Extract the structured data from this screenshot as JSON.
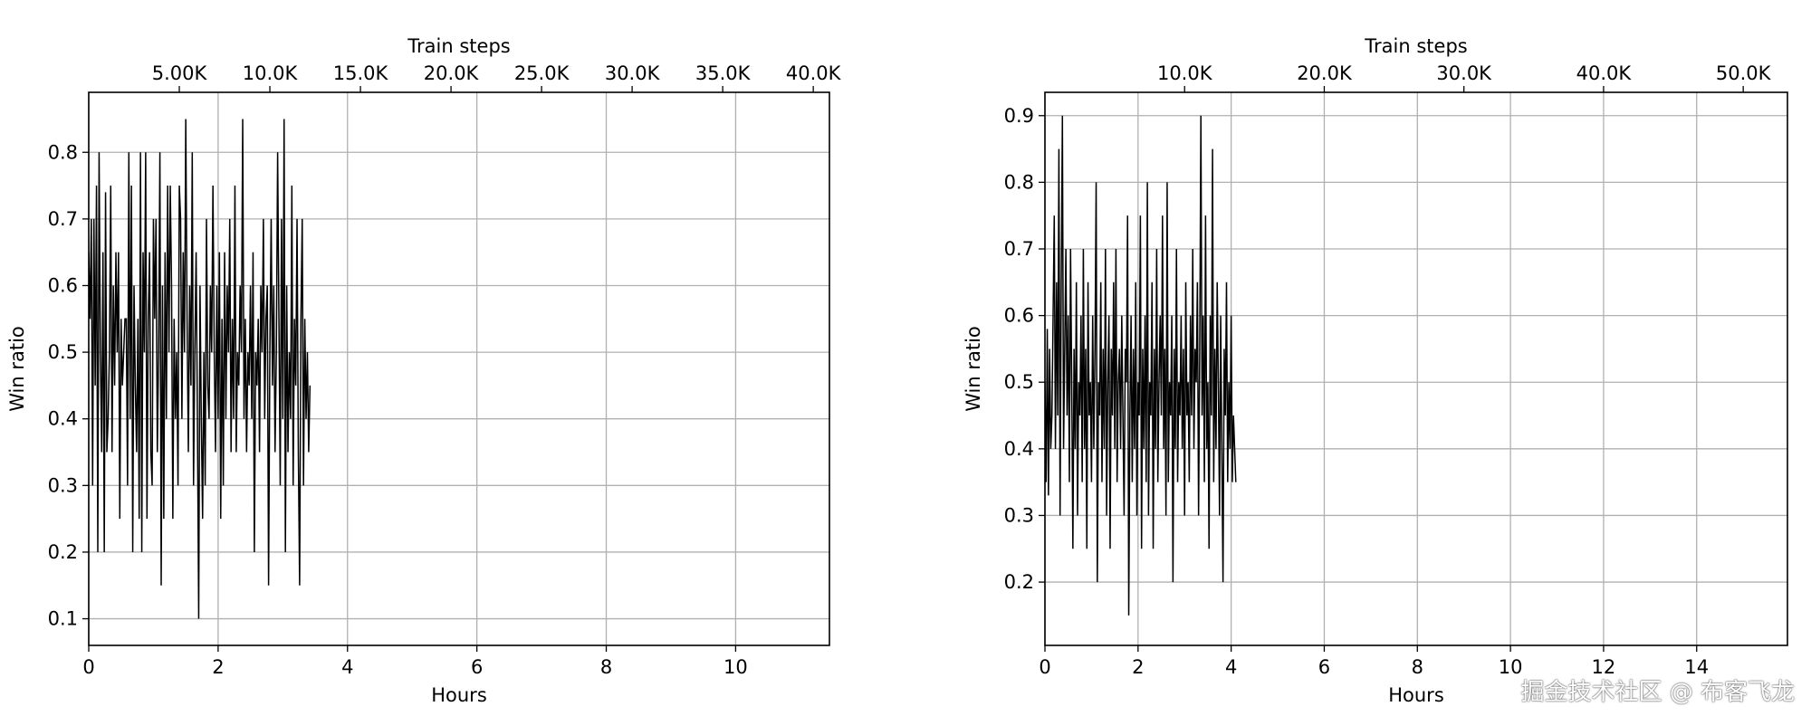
{
  "watermark": "掘金技术社区 @ 布客飞龙",
  "chart_data": [
    {
      "type": "line",
      "xlabel": "Hours",
      "ylabel": "Win ratio",
      "top_xlabel": "Train steps",
      "xlim": [
        0,
        11.45
      ],
      "ylim": [
        0.06,
        0.89
      ],
      "xticks": [
        0,
        2,
        4,
        6,
        8,
        10
      ],
      "yticks": [
        0.1,
        0.2,
        0.3,
        0.4,
        0.5,
        0.6,
        0.7,
        0.8
      ],
      "top_ticks": [
        {
          "label": "5.00K",
          "hours": 1.4
        },
        {
          "label": "10.0K",
          "hours": 2.8
        },
        {
          "label": "15.0K",
          "hours": 4.2
        },
        {
          "label": "20.0K",
          "hours": 5.6
        },
        {
          "label": "25.0K",
          "hours": 7.0
        },
        {
          "label": "30.0K",
          "hours": 8.4
        },
        {
          "label": "35.0K",
          "hours": 9.8
        },
        {
          "label": "40.0K",
          "hours": 11.2
        }
      ],
      "grid": true,
      "series": [
        {
          "color": "#000000",
          "x_start": 0,
          "x_step": 0.02,
          "values": [
            0.65,
            0.55,
            0.7,
            0.3,
            0.7,
            0.45,
            0.75,
            0.2,
            0.8,
            0.5,
            0.35,
            0.65,
            0.2,
            0.74,
            0.35,
            0.4,
            0.5,
            0.75,
            0.35,
            0.6,
            0.45,
            0.65,
            0.5,
            0.65,
            0.25,
            0.55,
            0.45,
            0.5,
            0.55,
            0.55,
            0.3,
            0.8,
            0.4,
            0.75,
            0.2,
            0.6,
            0.45,
            0.35,
            0.55,
            0.25,
            0.8,
            0.2,
            0.65,
            0.5,
            0.8,
            0.25,
            0.55,
            0.65,
            0.35,
            0.3,
            0.7,
            0.55,
            0.7,
            0.35,
            0.5,
            0.8,
            0.15,
            0.6,
            0.25,
            0.65,
            0.4,
            0.75,
            0.5,
            0.75,
            0.6,
            0.25,
            0.55,
            0.4,
            0.5,
            0.3,
            0.75,
            0.7,
            0.4,
            0.65,
            0.5,
            0.85,
            0.55,
            0.35,
            0.6,
            0.45,
            0.8,
            0.3,
            0.5,
            0.65,
            0.4,
            0.1,
            0.6,
            0.4,
            0.25,
            0.5,
            0.3,
            0.7,
            0.45,
            0.4,
            0.6,
            0.5,
            0.75,
            0.5,
            0.35,
            0.6,
            0.4,
            0.65,
            0.25,
            0.55,
            0.3,
            0.65,
            0.4,
            0.6,
            0.5,
            0.7,
            0.35,
            0.55,
            0.4,
            0.75,
            0.35,
            0.5,
            0.45,
            0.6,
            0.5,
            0.85,
            0.4,
            0.55,
            0.35,
            0.5,
            0.45,
            0.6,
            0.4,
            0.65,
            0.2,
            0.5,
            0.45,
            0.55,
            0.35,
            0.6,
            0.5,
            0.7,
            0.4,
            0.55,
            0.6,
            0.15,
            0.5,
            0.7,
            0.45,
            0.6,
            0.35,
            0.5,
            0.8,
            0.55,
            0.3,
            0.7,
            0.4,
            0.85,
            0.2,
            0.6,
            0.35,
            0.5,
            0.4,
            0.75,
            0.3,
            0.55,
            0.45,
            0.7,
            0.35,
            0.15,
            0.55,
            0.7,
            0.3,
            0.55,
            0.4,
            0.5,
            0.35,
            0.45
          ]
        }
      ]
    },
    {
      "type": "line",
      "xlabel": "Hours",
      "ylabel": "Win ratio",
      "top_xlabel": "Train steps",
      "xlim": [
        0,
        15.95
      ],
      "ylim": [
        0.105,
        0.935
      ],
      "xticks": [
        0,
        2,
        4,
        6,
        8,
        10,
        12,
        14
      ],
      "yticks": [
        0.2,
        0.3,
        0.4,
        0.5,
        0.6,
        0.7,
        0.8,
        0.9
      ],
      "top_ticks": [
        {
          "label": "10.0K",
          "hours": 3.0
        },
        {
          "label": "20.0K",
          "hours": 6.0
        },
        {
          "label": "30.0K",
          "hours": 9.0
        },
        {
          "label": "40.0K",
          "hours": 12.0
        },
        {
          "label": "50.0K",
          "hours": 15.0
        }
      ],
      "grid": true,
      "series": [
        {
          "color": "#000000",
          "x_start": 0,
          "x_step": 0.025,
          "values": [
            0.5,
            0.35,
            0.58,
            0.33,
            0.55,
            0.4,
            0.45,
            0.6,
            0.75,
            0.4,
            0.65,
            0.45,
            0.85,
            0.3,
            0.65,
            0.9,
            0.4,
            0.55,
            0.7,
            0.45,
            0.6,
            0.35,
            0.7,
            0.5,
            0.25,
            0.55,
            0.4,
            0.65,
            0.3,
            0.5,
            0.45,
            0.6,
            0.35,
            0.7,
            0.4,
            0.55,
            0.25,
            0.65,
            0.45,
            0.5,
            0.35,
            0.6,
            0.4,
            0.55,
            0.8,
            0.2,
            0.5,
            0.45,
            0.65,
            0.35,
            0.55,
            0.4,
            0.7,
            0.3,
            0.5,
            0.6,
            0.25,
            0.55,
            0.45,
            0.65,
            0.4,
            0.7,
            0.35,
            0.5,
            0.55,
            0.4,
            0.6,
            0.45,
            0.3,
            0.55,
            0.5,
            0.75,
            0.15,
            0.45,
            0.6,
            0.35,
            0.55,
            0.4,
            0.65,
            0.3,
            0.5,
            0.45,
            0.75,
            0.25,
            0.55,
            0.4,
            0.6,
            0.35,
            0.8,
            0.3,
            0.5,
            0.45,
            0.65,
            0.25,
            0.55,
            0.4,
            0.7,
            0.35,
            0.5,
            0.6,
            0.45,
            0.75,
            0.4,
            0.55,
            0.3,
            0.8,
            0.35,
            0.5,
            0.45,
            0.6,
            0.2,
            0.55,
            0.4,
            0.7,
            0.35,
            0.5,
            0.45,
            0.6,
            0.4,
            0.55,
            0.3,
            0.65,
            0.45,
            0.5,
            0.35,
            0.6,
            0.45,
            0.7,
            0.4,
            0.55,
            0.5,
            0.65,
            0.3,
            0.55,
            0.9,
            0.45,
            0.6,
            0.35,
            0.75,
            0.4,
            0.5,
            0.25,
            0.6,
            0.45,
            0.85,
            0.35,
            0.55,
            0.4,
            0.65,
            0.5,
            0.3,
            0.6,
            0.4,
            0.2,
            0.55,
            0.45,
            0.65,
            0.35,
            0.5,
            0.4,
            0.6,
            0.35,
            0.45,
            0.4,
            0.35
          ]
        }
      ]
    }
  ]
}
